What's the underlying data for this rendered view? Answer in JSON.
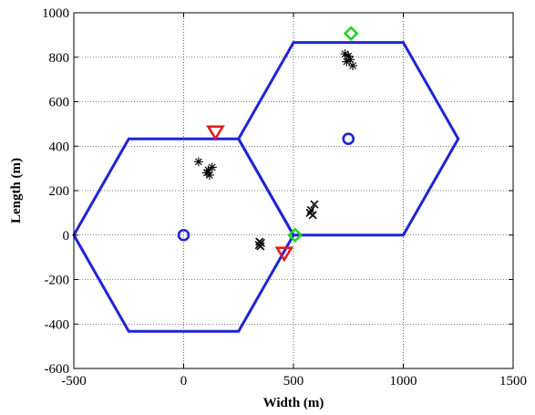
{
  "chart_data": {
    "type": "scatter",
    "xlabel": "Width (m)",
    "ylabel": "Length (m)",
    "xlim": [
      -500,
      1500
    ],
    "ylim": [
      -600,
      1000
    ],
    "xticks": [
      -500,
      0,
      500,
      1000,
      1500
    ],
    "yticks": [
      -600,
      -400,
      -200,
      0,
      200,
      400,
      600,
      800,
      1000
    ],
    "xtick_labels": [
      "-500",
      "0",
      "500",
      "1000",
      "1500"
    ],
    "ytick_labels": [
      "-600",
      "-400",
      "-200",
      "0",
      "200",
      "400",
      "600",
      "800",
      "1000"
    ],
    "grid": true,
    "colors": {
      "hexagon": "#1f24d6",
      "base_station": "#1f24d6",
      "triangle": "#e21d1d",
      "diamond": "#22d322",
      "cross": "#000000"
    },
    "series": [
      {
        "marker": "hexagon-outline",
        "color": "#1f24d6",
        "cells": [
          {
            "center": [
              0,
              0
            ],
            "vertices": [
              [
                -500,
                0
              ],
              [
                -250,
                433
              ],
              [
                250,
                433
              ],
              [
                500,
                0
              ],
              [
                250,
                -433
              ],
              [
                -250,
                -433
              ]
            ]
          },
          {
            "center": [
              750,
              433
            ],
            "vertices": [
              [
                250,
                433
              ],
              [
                500,
                866
              ],
              [
                1000,
                866
              ],
              [
                1250,
                433
              ],
              [
                1000,
                0
              ],
              [
                500,
                0
              ]
            ]
          }
        ]
      },
      {
        "marker": "circle",
        "color": "#1f24d6",
        "points": [
          [
            0,
            0
          ],
          [
            750,
            433
          ]
        ]
      },
      {
        "marker": "triangle-down",
        "color": "#e21d1d",
        "points": [
          [
            145,
            465
          ],
          [
            458,
            -80
          ]
        ]
      },
      {
        "marker": "diamond",
        "color": "#22d322",
        "points": [
          [
            762,
            907
          ],
          [
            507,
            0
          ]
        ]
      },
      {
        "marker": "asterisk",
        "color": "#000000",
        "points": [
          [
            68,
            330
          ],
          [
            112,
            293
          ],
          [
            130,
            305
          ],
          [
            118,
            270
          ],
          [
            105,
            280
          ],
          [
            735,
            815
          ],
          [
            758,
            790
          ],
          [
            770,
            762
          ],
          [
            750,
            805
          ],
          [
            742,
            780
          ]
        ]
      },
      {
        "marker": "x",
        "color": "#000000",
        "points": [
          [
            345,
            -30
          ],
          [
            350,
            -50
          ],
          [
            343,
            -45
          ],
          [
            352,
            -35
          ],
          [
            575,
            100
          ],
          [
            588,
            90
          ],
          [
            595,
            138
          ],
          [
            580,
            112
          ]
        ]
      }
    ]
  }
}
